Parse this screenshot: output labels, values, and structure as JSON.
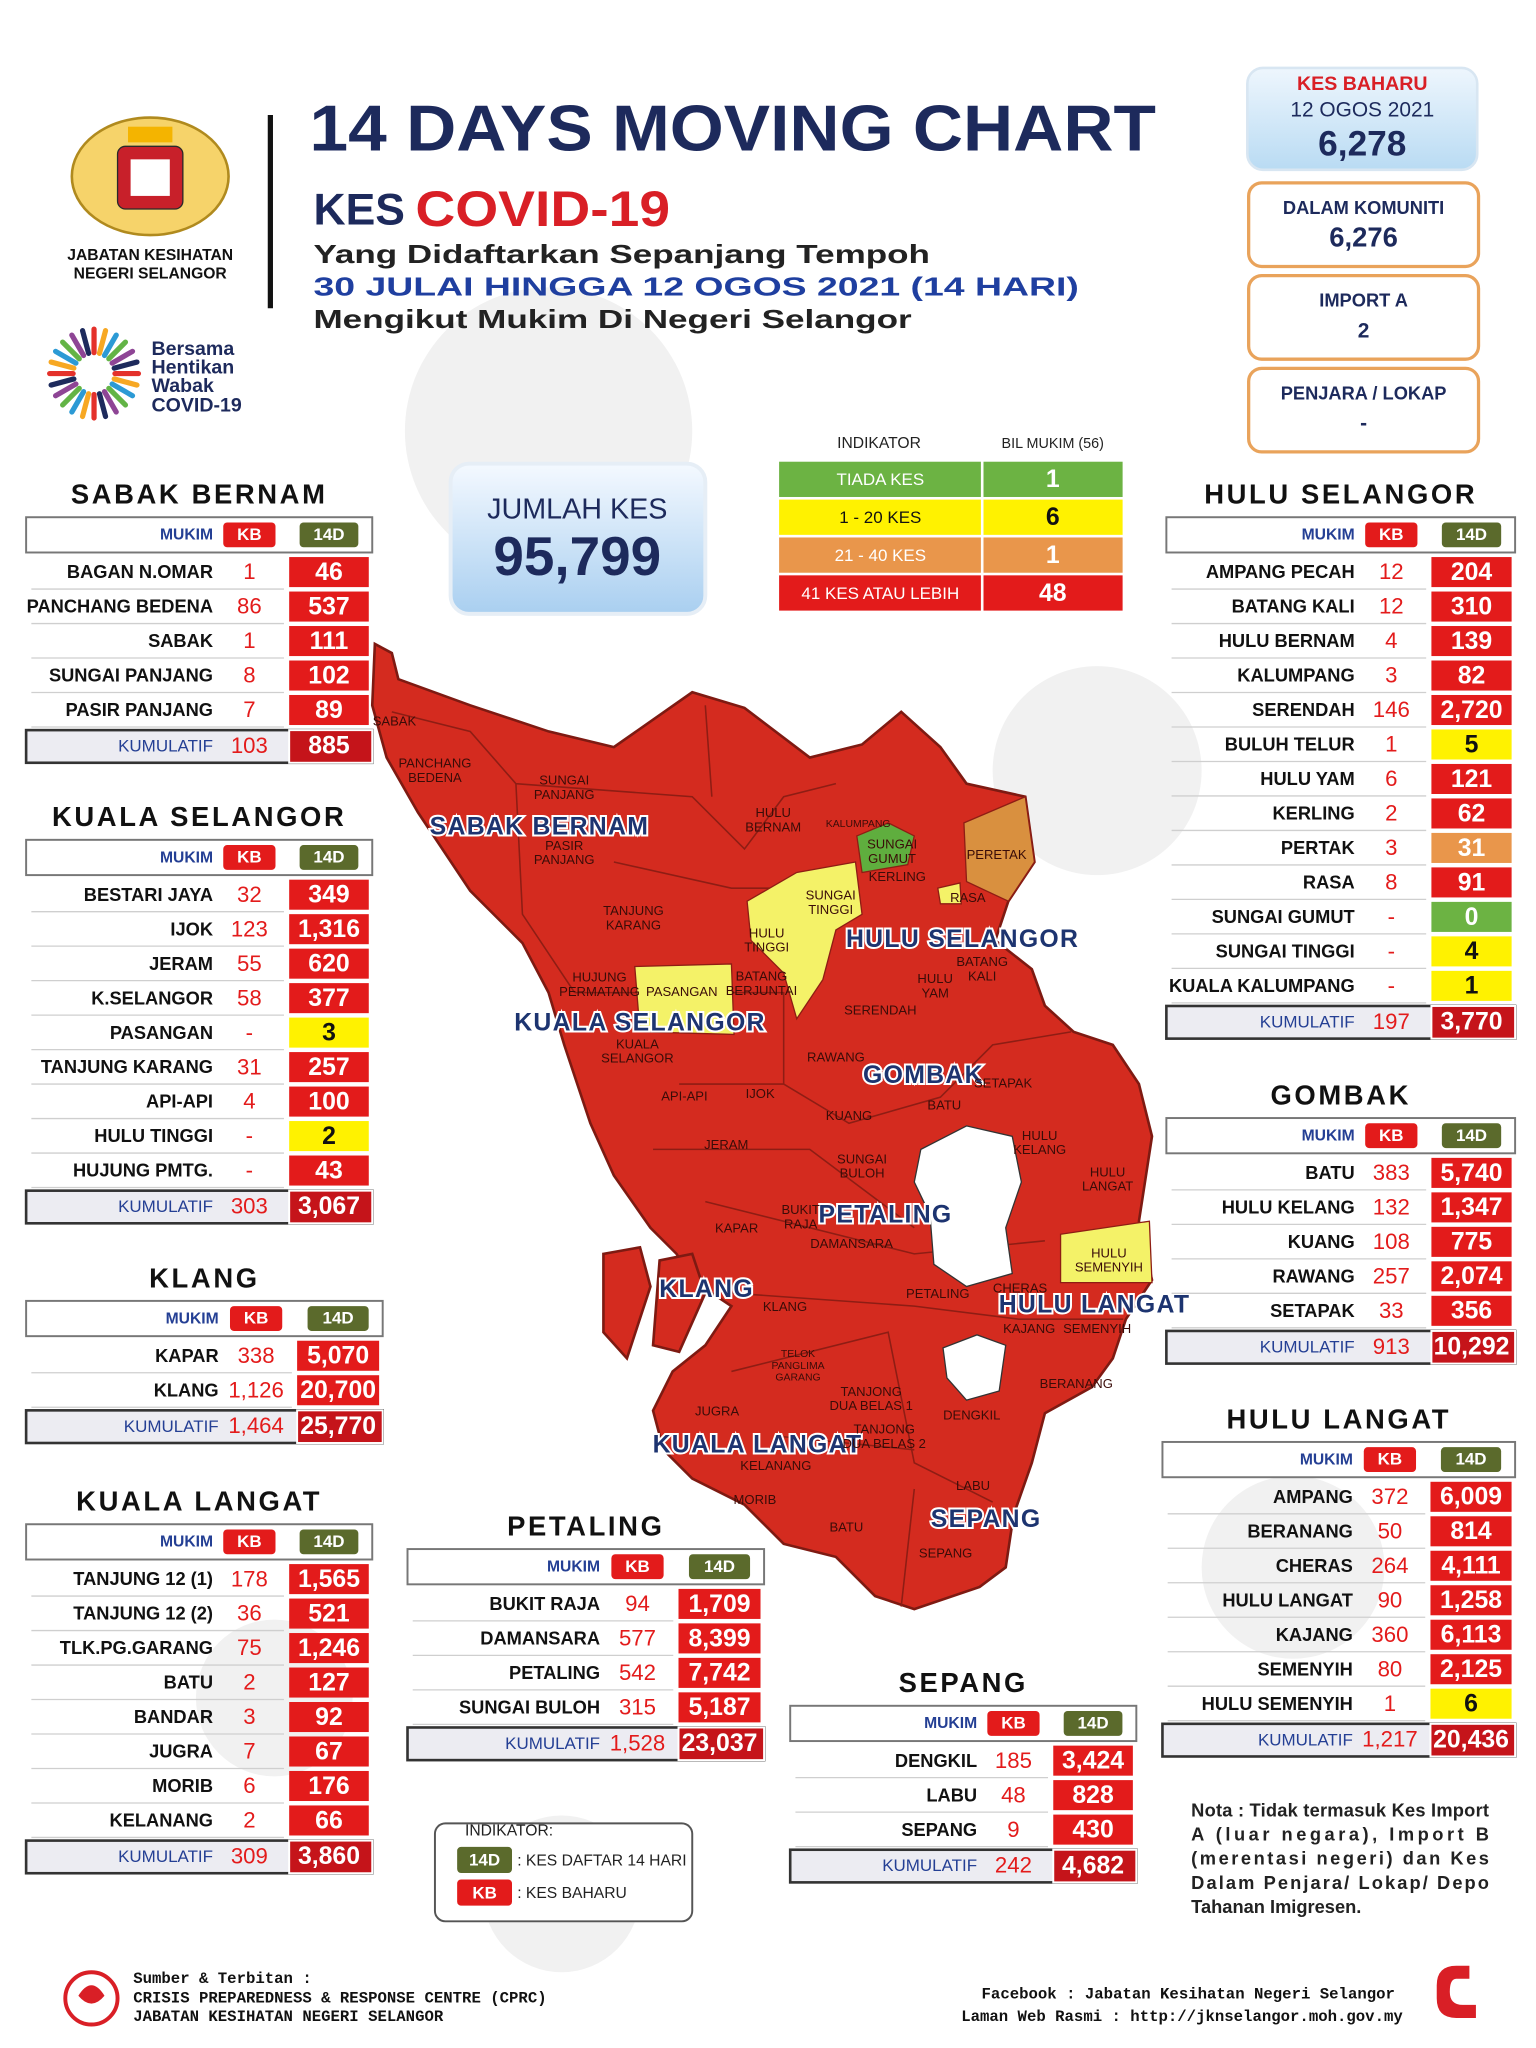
{
  "header": {
    "agency": [
      "JABATAN KESIHATAN",
      "NEGERI SELANGOR"
    ],
    "campaign": [
      "Bersama",
      "Hentikan",
      "Wabak",
      "COVID-19"
    ],
    "title": "14 DAYS MOVING CHART",
    "kes": "KES",
    "covid": "COVID-19",
    "subtitle_1": "Yang Didaftarkan Sepanjang Tempoh",
    "subtitle_2": "30 JULAI HINGGA 12 OGOS 2021 (14 HARI)",
    "subtitle_3": "Mengikut Mukim Di Negeri Selangor"
  },
  "summary": {
    "kes_baharu": {
      "label": "KES BAHARU",
      "date": "12 OGOS 2021",
      "value": "6,278"
    },
    "boxes": [
      {
        "label": "DALAM KOMUNITI",
        "value": "6,276"
      },
      {
        "label": "IMPORT A",
        "value": "2"
      },
      {
        "label": "PENJARA / LOKAP",
        "value": "-"
      }
    ]
  },
  "total": {
    "label": "JUMLAH KES",
    "value": "95,799"
  },
  "indicator": {
    "headers": [
      "INDIKATOR",
      "BIL MUKIM (56)"
    ],
    "rows": [
      {
        "label": "TIADA KES",
        "count": "1",
        "color": "#6cb343"
      },
      {
        "label": "1 - 20 KES",
        "count": "6",
        "color": "#fff200"
      },
      {
        "label": "21 - 40 KES",
        "count": "1",
        "color": "#e9964b"
      },
      {
        "label": "41 KES ATAU LEBIH",
        "count": "48",
        "color": "#e31b1b"
      }
    ]
  },
  "columns": [
    "MUKIM",
    "KB",
    "14D"
  ],
  "cumulative_label": "KUMULATIF",
  "districts": [
    {
      "name": "SABAK BERNAM",
      "rows": [
        {
          "mukim": "BAGAN N.OMAR",
          "kb": "1",
          "d14": "46"
        },
        {
          "mukim": "PANCHANG BEDENA",
          "kb": "86",
          "d14": "537"
        },
        {
          "mukim": "SABAK",
          "kb": "1",
          "d14": "111"
        },
        {
          "mukim": "SUNGAI PANJANG",
          "kb": "8",
          "d14": "102"
        },
        {
          "mukim": "PASIR PANJANG",
          "kb": "7",
          "d14": "89"
        }
      ],
      "total": {
        "kb": "103",
        "d14": "885"
      }
    },
    {
      "name": "KUALA SELANGOR",
      "rows": [
        {
          "mukim": "BESTARI JAYA",
          "kb": "32",
          "d14": "349"
        },
        {
          "mukim": "IJOK",
          "kb": "123",
          "d14": "1,316"
        },
        {
          "mukim": "JERAM",
          "kb": "55",
          "d14": "620"
        },
        {
          "mukim": "K.SELANGOR",
          "kb": "58",
          "d14": "377"
        },
        {
          "mukim": "PASANGAN",
          "kb": "-",
          "d14": "3",
          "color": "#fff200"
        },
        {
          "mukim": "TANJUNG KARANG",
          "kb": "31",
          "d14": "257"
        },
        {
          "mukim": "API-API",
          "kb": "4",
          "d14": "100"
        },
        {
          "mukim": "HULU TINGGI",
          "kb": "-",
          "d14": "2",
          "color": "#fff200"
        },
        {
          "mukim": "HUJUNG PMTG.",
          "kb": "-",
          "d14": "43"
        }
      ],
      "total": {
        "kb": "303",
        "d14": "3,067"
      }
    },
    {
      "name": "KLANG",
      "rows": [
        {
          "mukim": "KAPAR",
          "kb": "338",
          "d14": "5,070"
        },
        {
          "mukim": "KLANG",
          "kb": "1,126",
          "d14": "20,700"
        }
      ],
      "total": {
        "kb": "1,464",
        "d14": "25,770"
      }
    },
    {
      "name": "KUALA LANGAT",
      "rows": [
        {
          "mukim": "TANJUNG 12 (1)",
          "kb": "178",
          "d14": "1,565"
        },
        {
          "mukim": "TANJUNG 12 (2)",
          "kb": "36",
          "d14": "521"
        },
        {
          "mukim": "TLK.PG.GARANG",
          "kb": "75",
          "d14": "1,246"
        },
        {
          "mukim": "BATU",
          "kb": "2",
          "d14": "127"
        },
        {
          "mukim": "BANDAR",
          "kb": "3",
          "d14": "92"
        },
        {
          "mukim": "JUGRA",
          "kb": "7",
          "d14": "67"
        },
        {
          "mukim": "MORIB",
          "kb": "6",
          "d14": "176"
        },
        {
          "mukim": "KELANANG",
          "kb": "2",
          "d14": "66"
        }
      ],
      "total": {
        "kb": "309",
        "d14": "3,860"
      }
    },
    {
      "name": "HULU SELANGOR",
      "rows": [
        {
          "mukim": "AMPANG PECAH",
          "kb": "12",
          "d14": "204"
        },
        {
          "mukim": "BATANG KALI",
          "kb": "12",
          "d14": "310"
        },
        {
          "mukim": "HULU BERNAM",
          "kb": "4",
          "d14": "139"
        },
        {
          "mukim": "KALUMPANG",
          "kb": "3",
          "d14": "82"
        },
        {
          "mukim": "SERENDAH",
          "kb": "146",
          "d14": "2,720"
        },
        {
          "mukim": "BULUH TELUR",
          "kb": "1",
          "d14": "5",
          "color": "#fff200"
        },
        {
          "mukim": "HULU YAM",
          "kb": "6",
          "d14": "121"
        },
        {
          "mukim": "KERLING",
          "kb": "2",
          "d14": "62"
        },
        {
          "mukim": "PERTAK",
          "kb": "3",
          "d14": "31",
          "color": "#e9964b"
        },
        {
          "mukim": "RASA",
          "kb": "8",
          "d14": "91"
        },
        {
          "mukim": "SUNGAI GUMUT",
          "kb": "-",
          "d14": "0",
          "color": "#6cb343"
        },
        {
          "mukim": "SUNGAI TINGGI",
          "kb": "-",
          "d14": "4",
          "color": "#fff200"
        },
        {
          "mukim": "KUALA KALUMPANG",
          "kb": "-",
          "d14": "1",
          "color": "#fff200"
        }
      ],
      "total": {
        "kb": "197",
        "d14": "3,770"
      }
    },
    {
      "name": "GOMBAK",
      "rows": [
        {
          "mukim": "BATU",
          "kb": "383",
          "d14": "5,740"
        },
        {
          "mukim": "HULU KELANG",
          "kb": "132",
          "d14": "1,347"
        },
        {
          "mukim": "KUANG",
          "kb": "108",
          "d14": "775"
        },
        {
          "mukim": "RAWANG",
          "kb": "257",
          "d14": "2,074"
        },
        {
          "mukim": "SETAPAK",
          "kb": "33",
          "d14": "356"
        }
      ],
      "total": {
        "kb": "913",
        "d14": "10,292"
      }
    },
    {
      "name": "HULU LANGAT",
      "rows": [
        {
          "mukim": "AMPANG",
          "kb": "372",
          "d14": "6,009"
        },
        {
          "mukim": "BERANANG",
          "kb": "50",
          "d14": "814"
        },
        {
          "mukim": "CHERAS",
          "kb": "264",
          "d14": "4,111"
        },
        {
          "mukim": "HULU LANGAT",
          "kb": "90",
          "d14": "1,258"
        },
        {
          "mukim": "KAJANG",
          "kb": "360",
          "d14": "6,113"
        },
        {
          "mukim": "SEMENYIH",
          "kb": "80",
          "d14": "2,125"
        },
        {
          "mukim": "HULU SEMENYIH",
          "kb": "1",
          "d14": "6",
          "color": "#fff200"
        }
      ],
      "total": {
        "kb": "1,217",
        "d14": "20,436"
      }
    },
    {
      "name": "PETALING",
      "rows": [
        {
          "mukim": "BUKIT RAJA",
          "kb": "94",
          "d14": "1,709"
        },
        {
          "mukim": "DAMANSARA",
          "kb": "577",
          "d14": "8,399"
        },
        {
          "mukim": "PETALING",
          "kb": "542",
          "d14": "7,742"
        },
        {
          "mukim": "SUNGAI BULOH",
          "kb": "315",
          "d14": "5,187"
        }
      ],
      "total": {
        "kb": "1,528",
        "d14": "23,037"
      }
    },
    {
      "name": "SEPANG",
      "rows": [
        {
          "mukim": "DENGKIL",
          "kb": "185",
          "d14": "3,424"
        },
        {
          "mukim": "LABU",
          "kb": "48",
          "d14": "828"
        },
        {
          "mukim": "SEPANG",
          "kb": "9",
          "d14": "430"
        }
      ],
      "total": {
        "kb": "242",
        "d14": "4,682"
      }
    }
  ],
  "map_labels": {
    "districts": [
      "SABAK BERNAM",
      "KUALA SELANGOR",
      "HULU SELANGOR",
      "GOMBAK",
      "PETALING",
      "KLANG",
      "HULU LANGAT",
      "KUALA LANGAT",
      "SEPANG"
    ],
    "mukims": [
      [
        "SABAK"
      ],
      [
        "PANCHANG",
        "BEDENA"
      ],
      [
        "SUNGAI",
        "PANJANG"
      ],
      [
        "PASIR",
        "PANJANG"
      ],
      [
        "HULU",
        "BERNAM"
      ],
      [
        "KALUMPANG"
      ],
      [
        "SUNGAI",
        "GUMUT"
      ],
      [
        "KERLING"
      ],
      [
        "PERETAK"
      ],
      [
        "SUNGAI",
        "TINGGI"
      ],
      [
        "HULU",
        "TINGGI"
      ],
      [
        "RASA"
      ],
      [
        "TANJUNG",
        "KARANG"
      ],
      [
        "HUJUNG",
        "PERMATANG"
      ],
      [
        "PASANGAN"
      ],
      [
        "BATANG",
        "BERJUNTAI"
      ],
      [
        "SERENDAH"
      ],
      [
        "HULU",
        "YAM"
      ],
      [
        "BATANG",
        "KALI"
      ],
      [
        "KUALA",
        "SELANGOR"
      ],
      [
        "API-API"
      ],
      [
        "IJOK"
      ],
      [
        "RAWANG"
      ],
      [
        "SETAPAK"
      ],
      [
        "KUANG"
      ],
      [
        "BATU"
      ],
      [
        "HULU",
        "KELANG"
      ],
      [
        "JERAM"
      ],
      [
        "SUNGAI",
        "BULOH"
      ],
      [
        "HULU",
        "LANGAT"
      ],
      [
        "KAPAR"
      ],
      [
        "BUKIT",
        "RAJA"
      ],
      [
        "DAMANSARA"
      ],
      [
        "HULU",
        "SEMENYIH"
      ],
      [
        "KLANG"
      ],
      [
        "PETALING"
      ],
      [
        "CHERAS"
      ],
      [
        "KAJANG"
      ],
      [
        "SEMENYIH"
      ],
      [
        "TELOK",
        "PANGLIMA",
        "GARANG"
      ],
      [
        "TANJONG",
        "DUA BELAS 1"
      ],
      [
        "BERANANG"
      ],
      [
        "JUGRA"
      ],
      [
        "DENGKIL"
      ],
      [
        "TANJONG",
        "DUA BELAS 2"
      ],
      [
        "KELANANG"
      ],
      [
        "LABU"
      ],
      [
        "MORIB"
      ],
      [
        "BATU"
      ],
      [
        "SEPANG"
      ]
    ]
  },
  "legend": {
    "title": "INDIKATOR:",
    "items": [
      {
        "tag": "14D",
        "text": ": KES DAFTAR 14 HARI"
      },
      {
        "tag": "KB",
        "text": ": KES BAHARU"
      }
    ]
  },
  "note": [
    "Nota : Tidak termasuk Kes Import",
    "A (luar negara), Import B",
    "(merentasi negeri) dan Kes",
    "Dalam Penjara/ Lokap/ Depo",
    "Tahanan Imigresen."
  ],
  "footer": {
    "source": [
      "Sumber & Terbitan :",
      "CRISIS PREPAREDNESS & RESPONSE CENTRE (CPRC)",
      "JABATAN KESIHATAN NEGERI SELANGOR"
    ],
    "links": [
      "Facebook : Jabatan Kesihatan Negeri Selangor",
      "Laman Web Rasmi : http://jknselangor.moh.gov.my"
    ]
  }
}
